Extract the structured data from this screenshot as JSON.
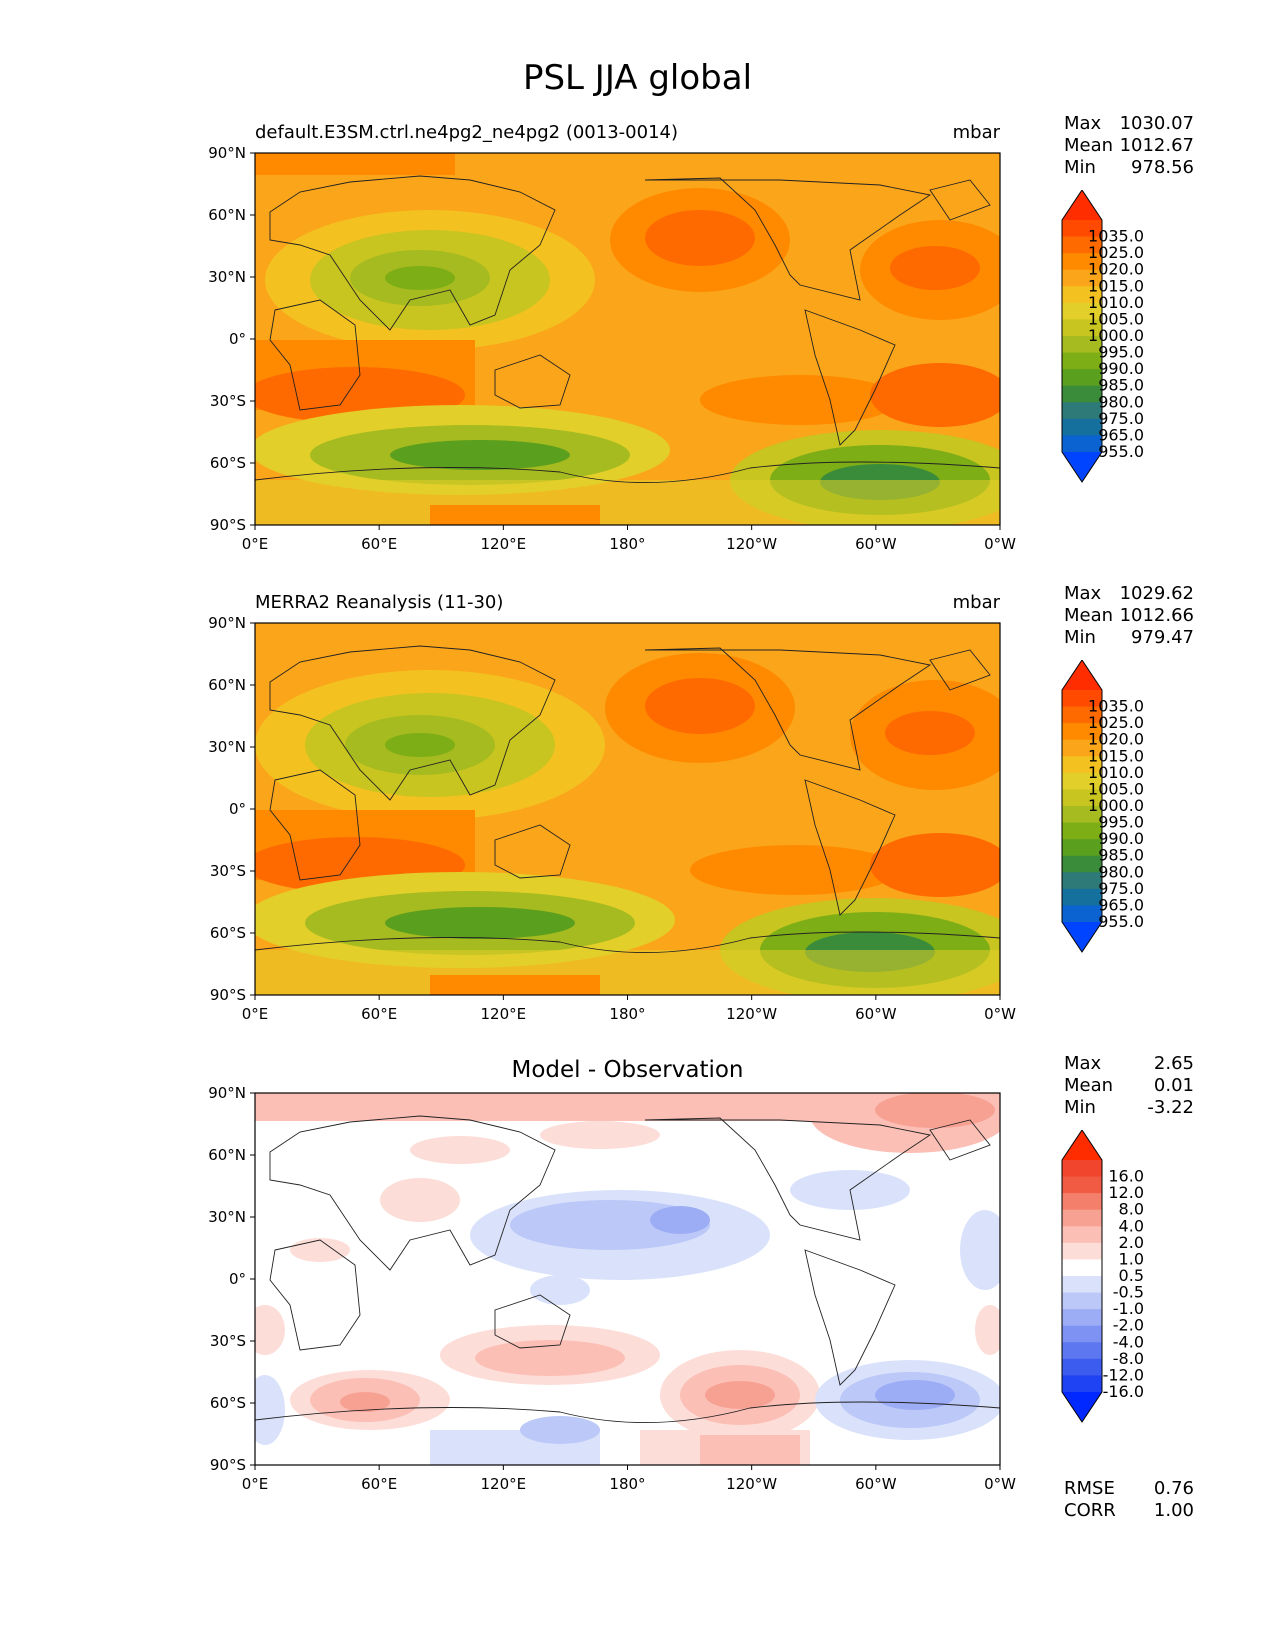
{
  "title": "PSL JJA global",
  "lat_labels": [
    "90°N",
    "60°N",
    "30°N",
    "0°",
    "30°S",
    "60°S",
    "90°S"
  ],
  "lon_labels": [
    "0°E",
    "60°E",
    "120°E",
    "180°",
    "120°W",
    "60°W",
    "0°W"
  ],
  "panels": [
    {
      "left_title": "default.E3SM.ctrl.ne4pg2_ne4pg2 (0013-0014)",
      "right_title": "mbar",
      "center_title": "",
      "stats": {
        "max_label": "Max",
        "max": "1030.07",
        "mean_label": "Mean",
        "mean": "1012.67",
        "min_label": "Min",
        "min": "978.56"
      }
    },
    {
      "left_title": "MERRA2 Reanalysis (11-30)",
      "right_title": "mbar",
      "center_title": "",
      "stats": {
        "max_label": "Max",
        "max": "1029.62",
        "mean_label": "Mean",
        "mean": "1012.66",
        "min_label": "Min",
        "min": "979.47"
      }
    },
    {
      "left_title": "",
      "right_title": "",
      "center_title": "Model - Observation",
      "stats": {
        "max_label": "Max",
        "max": "2.65",
        "mean_label": "Mean",
        "mean": "0.01",
        "min_label": "Min",
        "min": "-3.22"
      },
      "rmse_label": "RMSE",
      "rmse": "0.76",
      "corr_label": "CORR",
      "corr": "1.00"
    }
  ],
  "colorbar_abs": {
    "labels": [
      "1035.0",
      "1025.0",
      "1020.0",
      "1015.0",
      "1010.0",
      "1005.0",
      "1000.0",
      "995.0",
      "990.0",
      "985.0",
      "980.0",
      "975.0",
      "965.0",
      "955.0"
    ],
    "colors": [
      "#ff2d00",
      "#ff4a00",
      "#ff6a00",
      "#ff8a00",
      "#fba51a",
      "#f3c221",
      "#e3cf2a",
      "#c8c420",
      "#a6bb1f",
      "#7dae16",
      "#5a9f1d",
      "#3a8c3a",
      "#2d7a78",
      "#16709e",
      "#0a63d0",
      "#0044ff"
    ]
  },
  "colorbar_diff": {
    "labels": [
      "16.0",
      "12.0",
      "8.0",
      "4.0",
      "2.0",
      "1.0",
      "0.5",
      "-0.5",
      "-1.0",
      "-2.0",
      "-4.0",
      "-8.0",
      "-12.0",
      "-16.0"
    ],
    "colors": [
      "#ff2c00",
      "#f2452d",
      "#f15b43",
      "#f4806b",
      "#f7a193",
      "#fbbfb6",
      "#fdddd8",
      "#ffffff",
      "#dae2fb",
      "#bcc8f8",
      "#9cadf5",
      "#7d92f3",
      "#5d77f0",
      "#3c5cef",
      "#1f43f2",
      "#0028ff"
    ]
  },
  "chart_data": [
    {
      "type": "heatmap",
      "title": "default.E3SM.ctrl.ne4pg2_ne4pg2 (0013-0014)",
      "units": "mbar",
      "max": 1030.07,
      "mean": 1012.67,
      "min": 978.56
    },
    {
      "type": "heatmap",
      "title": "MERRA2 Reanalysis (11-30)",
      "units": "mbar",
      "max": 1029.62,
      "mean": 1012.66,
      "min": 979.47
    },
    {
      "type": "heatmap",
      "title": "Model - Observation",
      "max": 2.65,
      "mean": 0.01,
      "min": -3.22,
      "rmse": 0.76,
      "corr": 1.0
    }
  ]
}
